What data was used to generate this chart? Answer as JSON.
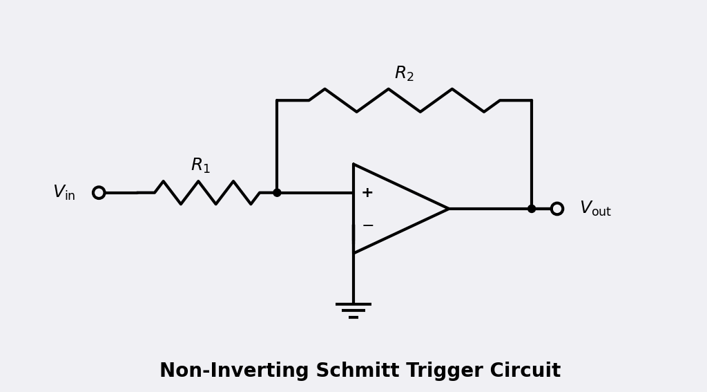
{
  "title": "Non-Inverting Schmitt Trigger Circuit",
  "title_fontsize": 20,
  "title_fontweight": "bold",
  "background_color": "#f0f0f4",
  "line_color": "#000000",
  "line_width": 3.0,
  "fig_width": 10.24,
  "fig_height": 5.67,
  "R1_label": "R_1",
  "R2_label": "R_2",
  "Vin_label": "V_\\mathrm{in}",
  "Vout_label": "V_\\mathrm{out}"
}
